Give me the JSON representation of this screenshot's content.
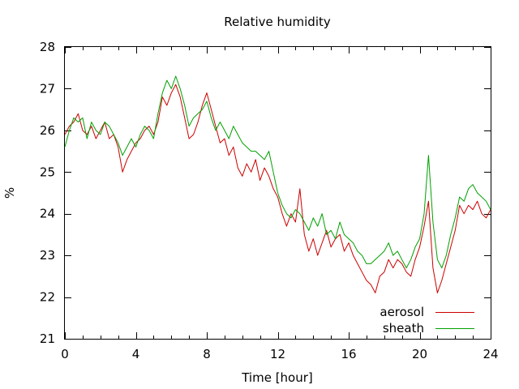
{
  "chart_data": {
    "type": "line",
    "title": "Relative humidity",
    "xlabel": "Time [hour]",
    "ylabel": "%",
    "xlim": [
      0,
      24
    ],
    "ylim": [
      21,
      28
    ],
    "xticks": [
      0,
      4,
      8,
      12,
      16,
      20,
      24
    ],
    "yticks": [
      21,
      22,
      23,
      24,
      25,
      26,
      27,
      28
    ],
    "grid": false,
    "legend_position": "bottom-right",
    "series": [
      {
        "name": "aerosol",
        "color": "#cc0000",
        "x": [
          0,
          0.25,
          0.5,
          0.75,
          1,
          1.25,
          1.5,
          1.75,
          2,
          2.25,
          2.5,
          2.75,
          3,
          3.25,
          3.5,
          3.75,
          4,
          4.25,
          4.5,
          4.75,
          5,
          5.25,
          5.5,
          5.75,
          6,
          6.25,
          6.5,
          6.75,
          7,
          7.25,
          7.5,
          7.75,
          8,
          8.25,
          8.5,
          8.75,
          9,
          9.25,
          9.5,
          9.75,
          10,
          10.25,
          10.5,
          10.75,
          11,
          11.25,
          11.5,
          11.75,
          12,
          12.25,
          12.5,
          12.75,
          13,
          13.25,
          13.5,
          13.75,
          14,
          14.25,
          14.5,
          14.75,
          15,
          15.25,
          15.5,
          15.75,
          16,
          16.25,
          16.5,
          16.75,
          17,
          17.25,
          17.5,
          17.75,
          18,
          18.25,
          18.5,
          18.75,
          19,
          19.25,
          19.5,
          19.75,
          20,
          20.25,
          20.5,
          20.75,
          21,
          21.25,
          21.5,
          21.75,
          22,
          22.25,
          22.5,
          22.75,
          23,
          23.25,
          23.5,
          23.75,
          24
        ],
        "y": [
          25.9,
          26.1,
          26.2,
          26.4,
          26.0,
          25.9,
          26.1,
          25.8,
          26.0,
          26.2,
          25.8,
          25.9,
          25.6,
          25.0,
          25.3,
          25.5,
          25.7,
          25.8,
          26.0,
          26.1,
          25.9,
          26.2,
          26.8,
          26.6,
          26.9,
          27.1,
          26.8,
          26.3,
          25.8,
          25.9,
          26.2,
          26.6,
          26.9,
          26.5,
          26.1,
          25.7,
          25.8,
          25.4,
          25.6,
          25.1,
          24.9,
          25.2,
          25.0,
          25.3,
          24.8,
          25.1,
          24.9,
          24.6,
          24.4,
          24.0,
          23.7,
          24.0,
          23.8,
          24.6,
          23.5,
          23.1,
          23.4,
          23.0,
          23.3,
          23.6,
          23.2,
          23.4,
          23.5,
          23.1,
          23.3,
          23.0,
          22.8,
          22.6,
          22.4,
          22.3,
          22.1,
          22.5,
          22.6,
          22.9,
          22.7,
          22.9,
          22.8,
          22.6,
          22.5,
          22.9,
          23.2,
          23.7,
          24.3,
          22.7,
          22.1,
          22.4,
          22.8,
          23.2,
          23.6,
          24.2,
          24.0,
          24.2,
          24.1,
          24.3,
          24.0,
          23.9,
          24.1
        ]
      },
      {
        "name": "sheath",
        "color": "#00a000",
        "x": [
          0,
          0.25,
          0.5,
          0.75,
          1,
          1.25,
          1.5,
          1.75,
          2,
          2.25,
          2.5,
          2.75,
          3,
          3.25,
          3.5,
          3.75,
          4,
          4.25,
          4.5,
          4.75,
          5,
          5.25,
          5.5,
          5.75,
          6,
          6.25,
          6.5,
          6.75,
          7,
          7.25,
          7.5,
          7.75,
          8,
          8.25,
          8.5,
          8.75,
          9,
          9.25,
          9.5,
          9.75,
          10,
          10.25,
          10.5,
          10.75,
          11,
          11.25,
          11.5,
          11.75,
          12,
          12.25,
          12.5,
          12.75,
          13,
          13.25,
          13.5,
          13.75,
          14,
          14.25,
          14.5,
          14.75,
          15,
          15.25,
          15.5,
          15.75,
          16,
          16.25,
          16.5,
          16.75,
          17,
          17.25,
          17.5,
          17.75,
          18,
          18.25,
          18.5,
          18.75,
          19,
          19.25,
          19.5,
          19.75,
          20,
          20.25,
          20.5,
          20.75,
          21,
          21.25,
          21.5,
          21.75,
          22,
          22.25,
          22.5,
          22.75,
          23,
          23.25,
          23.5,
          23.75,
          24
        ],
        "y": [
          25.6,
          26.0,
          26.3,
          26.2,
          26.3,
          25.8,
          26.2,
          26.0,
          25.9,
          26.2,
          26.1,
          25.9,
          25.7,
          25.4,
          25.6,
          25.8,
          25.6,
          25.9,
          26.1,
          26.0,
          25.8,
          26.4,
          26.9,
          27.2,
          27.0,
          27.3,
          27.0,
          26.6,
          26.1,
          26.3,
          26.4,
          26.5,
          26.7,
          26.3,
          26.0,
          26.2,
          26.0,
          25.8,
          26.1,
          25.9,
          25.7,
          25.6,
          25.5,
          25.5,
          25.4,
          25.3,
          25.5,
          25.0,
          24.5,
          24.2,
          24.0,
          23.9,
          24.1,
          24.0,
          23.8,
          23.6,
          23.9,
          23.7,
          24.0,
          23.5,
          23.6,
          23.4,
          23.8,
          23.5,
          23.4,
          23.3,
          23.1,
          23.0,
          22.8,
          22.8,
          22.9,
          23.0,
          23.1,
          23.3,
          23.0,
          23.1,
          22.9,
          22.7,
          22.9,
          23.2,
          23.4,
          24.0,
          25.4,
          23.8,
          22.9,
          22.7,
          23.0,
          23.5,
          23.9,
          24.4,
          24.3,
          24.6,
          24.7,
          24.5,
          24.4,
          24.3,
          24.1
        ]
      }
    ]
  }
}
